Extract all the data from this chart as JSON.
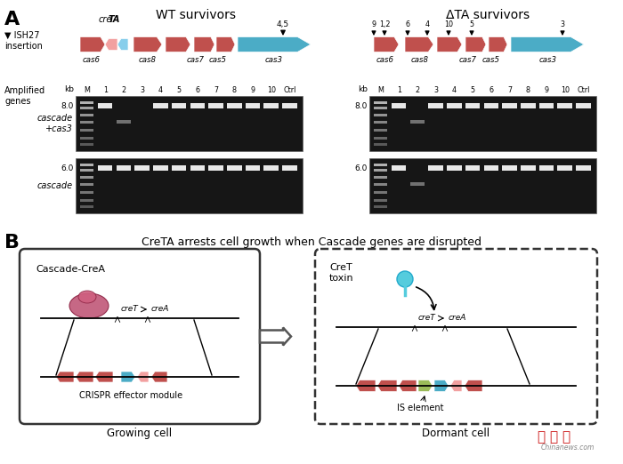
{
  "bg_color": "#ffffff",
  "panel_A_label": "A",
  "panel_B_label": "B",
  "wt_title": "WT survivors",
  "delta_title": "ΔTA survivors",
  "ish27_label": "▼ ISH27\ninsertion",
  "amplified_genes_label": "Amplified\ngenes",
  "cascade_cas3_label": "cascade\n+cas3",
  "cascade_label": "cascade",
  "kb_label": "kb",
  "wt_kb_val1": "8.0",
  "wt_kb_val2": "6.0",
  "delta_kb_val1": "8.0",
  "delta_kb_val2": "6.0",
  "wt_lane_labels": [
    "M",
    "1",
    "2",
    "3",
    "4",
    "5",
    "6",
    "7",
    "8",
    "9",
    "10",
    "Ctrl"
  ],
  "delta_lane_labels": [
    "M",
    "1",
    "2",
    "3",
    "4",
    "5",
    "6",
    "7",
    "8",
    "9",
    "10",
    "Ctrl"
  ],
  "wt_insertion_label": "4,5",
  "delta_insertion_labels": [
    [
      "9",
      0
    ],
    [
      "1,2",
      12
    ],
    [
      "6",
      38
    ],
    [
      "4",
      60
    ],
    [
      "10",
      84
    ],
    [
      "5",
      110
    ],
    [
      "3",
      212
    ]
  ],
  "wt_gene_names": [
    "cas6",
    "cas8",
    "cas7",
    "cas5",
    "cas3"
  ],
  "delta_gene_names": [
    "cas6",
    "cas8",
    "cas7",
    "cas5",
    "cas3"
  ],
  "creTa_label": "creTA",
  "panel_B_title": "CreTA arrests cell growth when Cascade genes are disrupted",
  "growing_cell_label": "Growing cell",
  "dormant_cell_label": "Dormant cell",
  "cascade_crea_label": "Cascade-CreA",
  "crispr_effector_label": "CRISPR effector module",
  "cret_toxin_label": "CreT\ntoxin",
  "is_element_label": "IS element",
  "red_color": "#c0504d",
  "blue_color": "#4bacc6",
  "pink_color": "#f2a0a0",
  "light_blue": "#87CEEB",
  "green_color": "#9bbb59",
  "gel_bg": "#161616",
  "gel_band": "#e8e8e8",
  "gel_marker": "#bbbbbb",
  "gel_dim_band": "#999999"
}
